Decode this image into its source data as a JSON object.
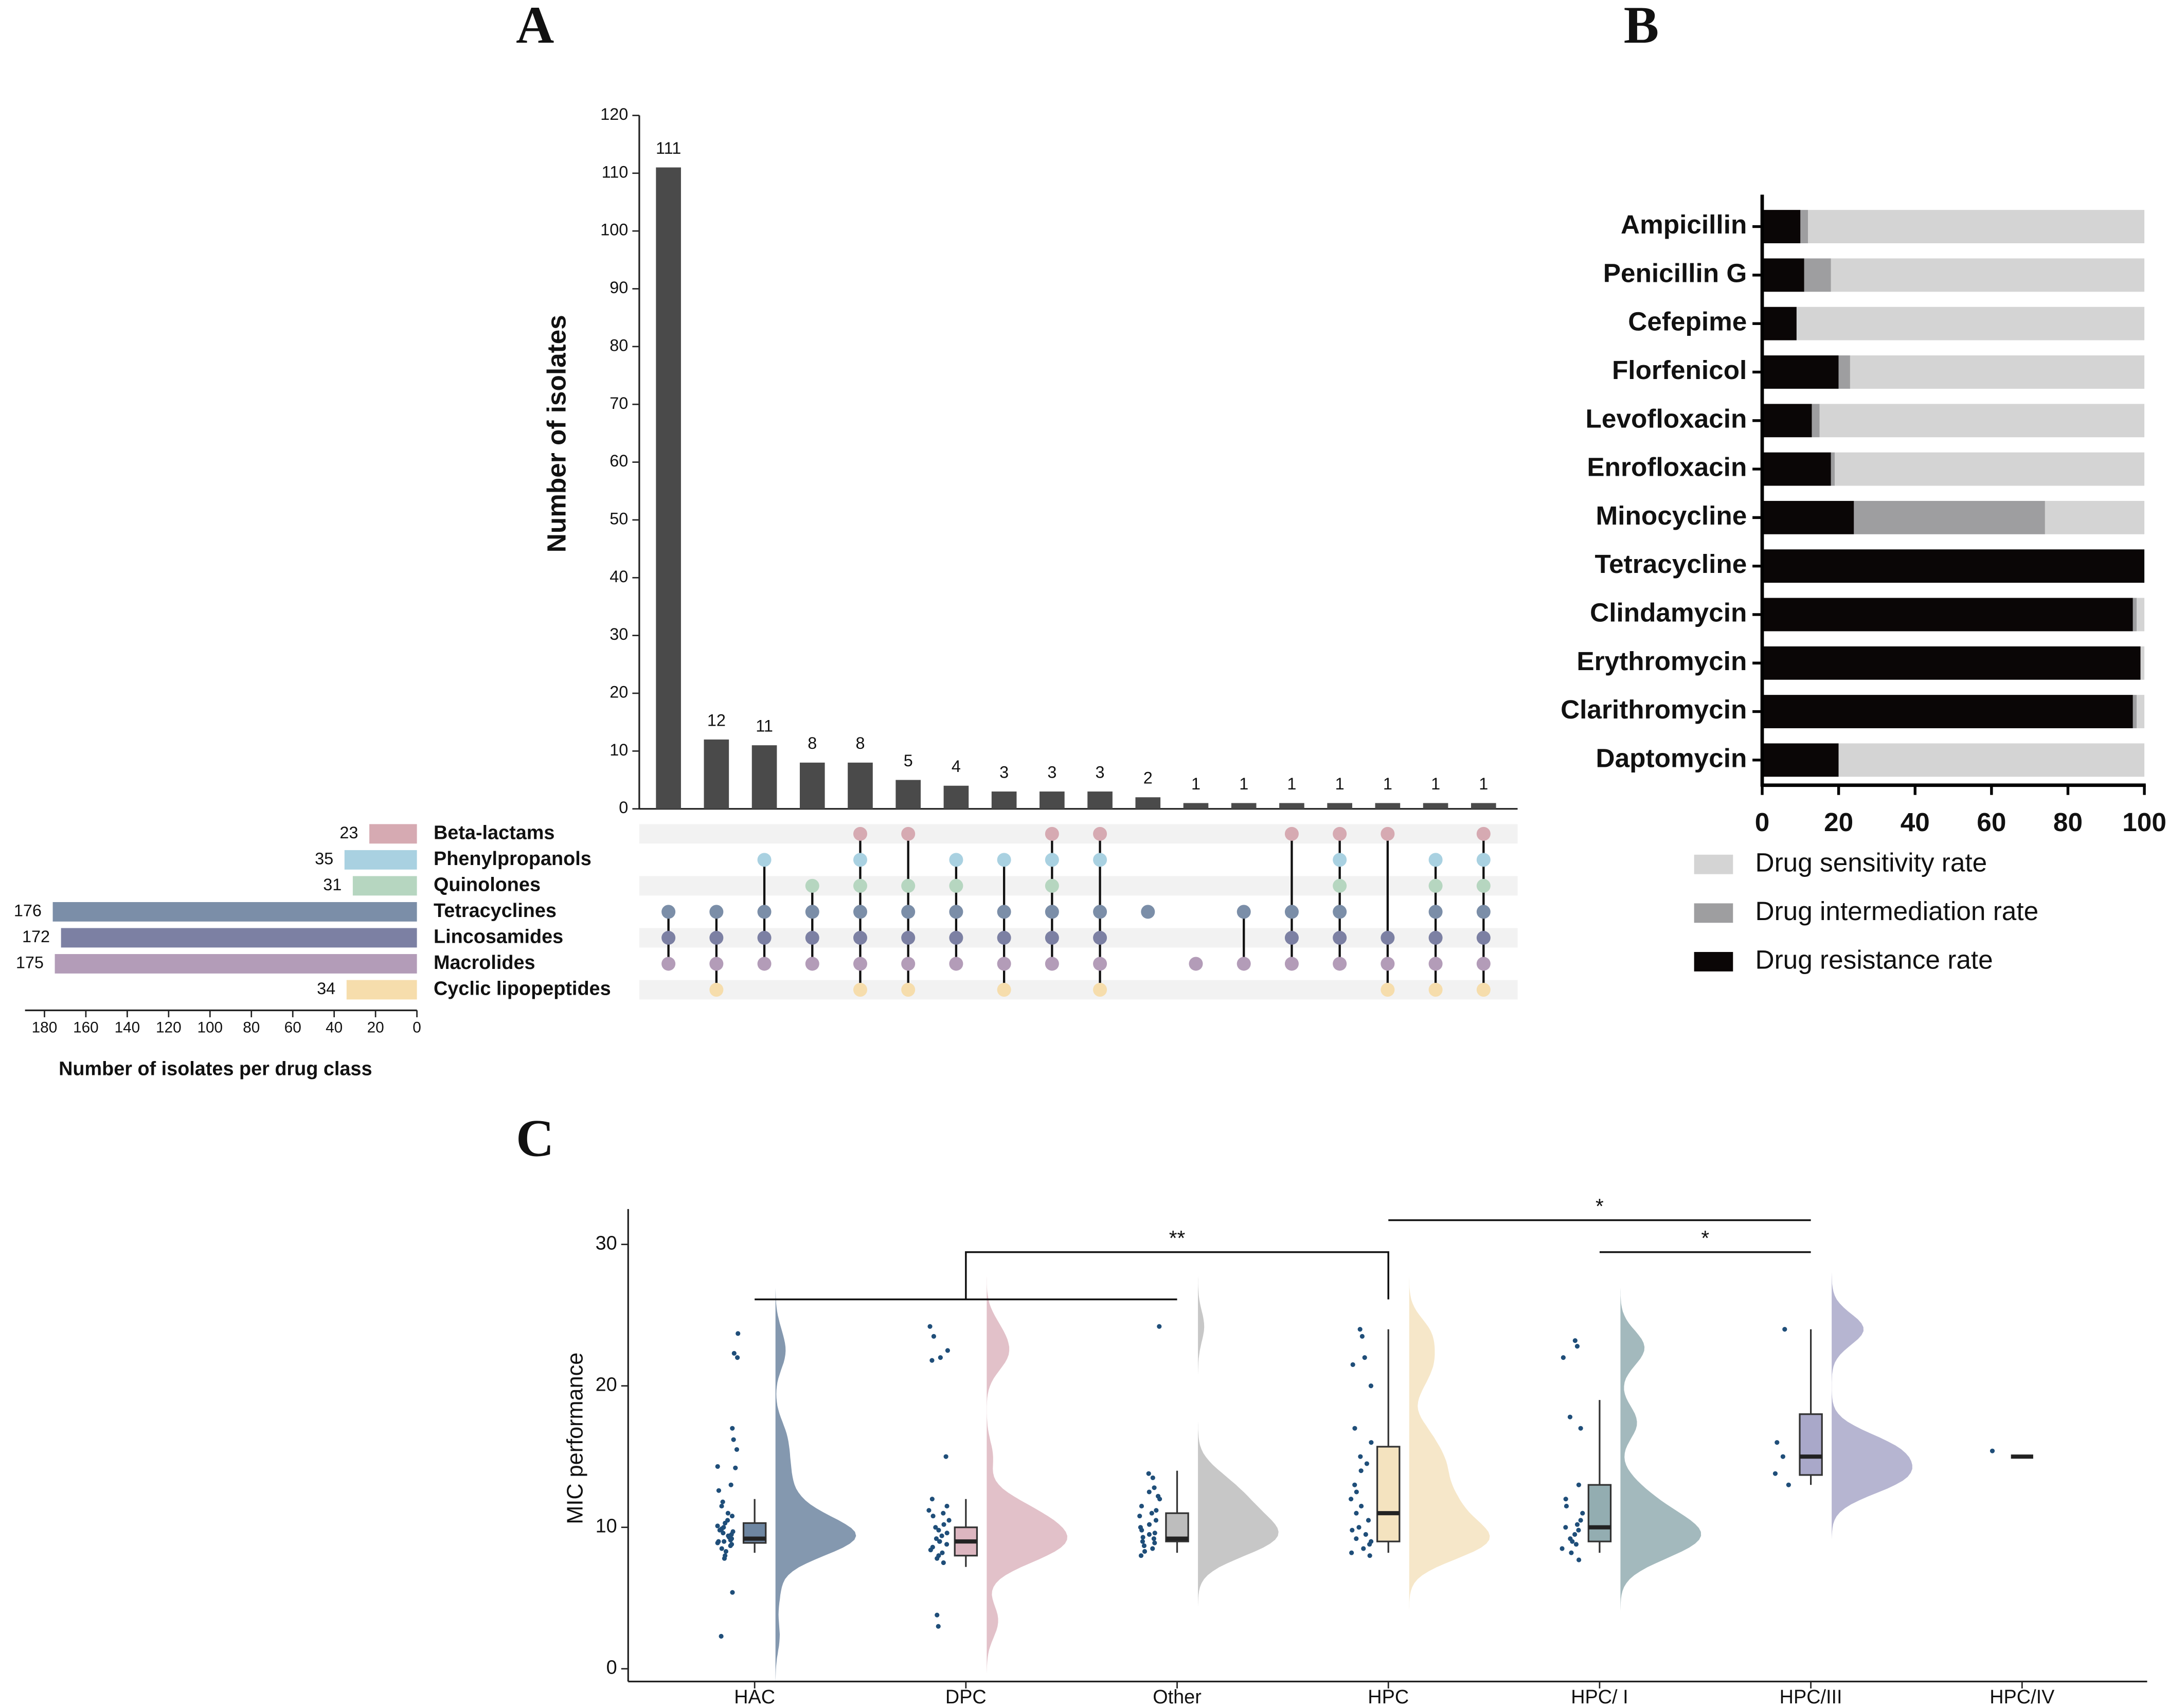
{
  "chart_data": [
    {
      "panel": "A",
      "type": "upset",
      "ylabel": "Number of isolates",
      "ylim": [
        0,
        120
      ],
      "yticks": [
        0,
        10,
        20,
        30,
        40,
        50,
        60,
        70,
        80,
        90,
        100,
        110,
        120
      ],
      "bar_color": "#4a4a4a",
      "intersections": [
        111,
        12,
        11,
        8,
        8,
        5,
        4,
        3,
        3,
        3,
        2,
        1,
        1,
        1,
        1,
        1,
        1,
        1
      ],
      "memberships": [
        [
          3,
          4,
          5
        ],
        [
          3,
          4,
          5,
          6
        ],
        [
          1,
          3,
          4,
          5
        ],
        [
          2,
          3,
          4,
          5
        ],
        [
          0,
          1,
          2,
          3,
          4,
          5,
          6
        ],
        [
          0,
          2,
          3,
          4,
          5,
          6
        ],
        [
          1,
          2,
          3,
          4,
          5
        ],
        [
          1,
          3,
          4,
          5,
          6
        ],
        [
          0,
          1,
          2,
          3,
          4,
          5
        ],
        [
          0,
          1,
          3,
          4,
          5,
          6
        ],
        [
          3
        ],
        [
          5
        ],
        [
          3,
          5
        ],
        [
          0,
          3,
          4,
          5
        ],
        [
          0,
          1,
          2,
          3,
          4,
          5
        ],
        [
          0,
          4,
          5,
          6
        ],
        [
          1,
          2,
          3,
          4,
          5,
          6
        ],
        [
          0,
          1,
          2,
          3,
          4,
          5,
          6
        ]
      ],
      "sets": [
        "Beta-lactams",
        "Phenylpropanols",
        "Quinolones",
        "Tetracyclines",
        "Lincosamides",
        "Macrolides",
        "Cyclic lipopeptides"
      ],
      "set_sizes": [
        23,
        35,
        31,
        176,
        172,
        175,
        34
      ],
      "set_colors": [
        "#d6aab2",
        "#a9d1e1",
        "#b6d6c0",
        "#7b8ea8",
        "#7c80a3",
        "#b39cb8",
        "#f6ddac"
      ],
      "xlabel": "Number of isolates per drug class",
      "xlim": [
        180,
        0
      ],
      "xticks": [
        180,
        160,
        140,
        120,
        100,
        80,
        60,
        40,
        20,
        0
      ]
    },
    {
      "panel": "B",
      "type": "stacked_barh",
      "categories": [
        "Ampicillin",
        "Penicillin G",
        "Cefepime",
        "Florfenicol",
        "Levofloxacin",
        "Enrofloxacin",
        "Minocycline",
        "Tetracycline",
        "Clindamycin",
        "Erythromycin",
        "Clarithromycin",
        "Daptomycin"
      ],
      "series": [
        {
          "name": "Drug sensitivity rate",
          "color": "#d4d4d4",
          "values": [
            88,
            82,
            91,
            77,
            85,
            81,
            26,
            0,
            2,
            1,
            2,
            80
          ]
        },
        {
          "name": "Drug intermediation rate",
          "color": "#9e9ea0",
          "values": [
            2,
            7,
            0,
            3,
            2,
            1,
            50,
            0,
            1,
            0,
            1,
            0
          ]
        },
        {
          "name": "Drug resistance rate",
          "color": "#0a0606",
          "values": [
            10,
            11,
            9,
            20,
            13,
            18,
            24,
            100,
            97,
            99,
            97,
            20
          ]
        }
      ],
      "xlim": [
        0,
        100
      ],
      "xticks": [
        0,
        20,
        40,
        60,
        80,
        100
      ]
    },
    {
      "panel": "C",
      "type": "raincloud",
      "ylabel": "MIC performance",
      "ylim": [
        -0.9,
        32.5
      ],
      "yticks": [
        0,
        10,
        20,
        30
      ],
      "categories": [
        "HAC",
        "DPC",
        "Other",
        "HPC",
        "HPC/ I",
        "HPC/III",
        "HPC/IV"
      ],
      "colors": [
        "#6e86a1",
        "#ddb6c0",
        "#bdbdbd",
        "#f4e3bf",
        "#93adb1",
        "#a9a8c9",
        "#9a9a9a"
      ],
      "point_color": "#1f4e79",
      "boxes": [
        {
          "min": 8.2,
          "q1": 8.9,
          "median": 9.2,
          "q3": 10.3,
          "max": 12
        },
        {
          "min": 7.2,
          "q1": 8,
          "median": 9,
          "q3": 10,
          "max": 12
        },
        {
          "min": 8.2,
          "q1": 9,
          "median": 9.2,
          "q3": 11,
          "max": 14
        },
        {
          "min": 8.2,
          "q1": 9,
          "median": 11,
          "q3": 15.7,
          "max": 24
        },
        {
          "min": 8.2,
          "q1": 9,
          "median": 10,
          "q3": 13,
          "max": 19
        },
        {
          "min": 13,
          "q1": 13.7,
          "median": 15,
          "q3": 18,
          "max": 24
        },
        {
          "min": 15,
          "q1": 15,
          "median": 15,
          "q3": 15,
          "max": 15
        }
      ],
      "points": [
        [
          23.7,
          22.3,
          22,
          17,
          16.2,
          15.5,
          14.3,
          14.2,
          13,
          12.6,
          11.8,
          11.5,
          11,
          10.8,
          10.5,
          10.3,
          10.1,
          10,
          9.9,
          9.8,
          9.7,
          9.6,
          9.5,
          9.4,
          9.3,
          9.2,
          9.1,
          9,
          9,
          8.9,
          8.8,
          8.7,
          8.5,
          8.3,
          8,
          7.8,
          5.4,
          2.3
        ],
        [
          24.2,
          23.5,
          22.5,
          22,
          21.8,
          15,
          12,
          11.5,
          11.2,
          11,
          10.8,
          10.5,
          10.2,
          10,
          9.8,
          9.6,
          9.4,
          9.2,
          9,
          9,
          8.8,
          8.6,
          8.4,
          8.2,
          8,
          7.8,
          7.5,
          3.8,
          3
        ],
        [
          24.2,
          13.8,
          13.5,
          12.8,
          12.5,
          12.2,
          12,
          11.5,
          11.2,
          11,
          10.8,
          10.5,
          10.2,
          10,
          9.8,
          9.6,
          9.5,
          9.3,
          9.2,
          9,
          8.9,
          8.7,
          8.5,
          8.3,
          8
        ],
        [
          24,
          23.5,
          22,
          21.5,
          20,
          17,
          16,
          15,
          14.5,
          14,
          13,
          12.5,
          12,
          11.5,
          11,
          10.5,
          10,
          9.8,
          9.5,
          9.2,
          9,
          8.8,
          8.5,
          8.2,
          8
        ],
        [
          23.2,
          22.8,
          22,
          17.8,
          17,
          13,
          12,
          11.5,
          11,
          10.5,
          10.2,
          10,
          9.8,
          9.5,
          9.2,
          9,
          8.8,
          8.5,
          8.2,
          7.7
        ],
        [
          24,
          16,
          15,
          13.8,
          13
        ],
        [
          15.4
        ]
      ],
      "comparisons": [
        {
          "left": [
            0,
            2
          ],
          "right": [
            3
          ],
          "label": "**"
        },
        {
          "left": [
            3
          ],
          "right": [
            5
          ],
          "label": "*"
        },
        {
          "left": [
            4
          ],
          "right": [
            5
          ],
          "label": "*"
        }
      ]
    }
  ]
}
